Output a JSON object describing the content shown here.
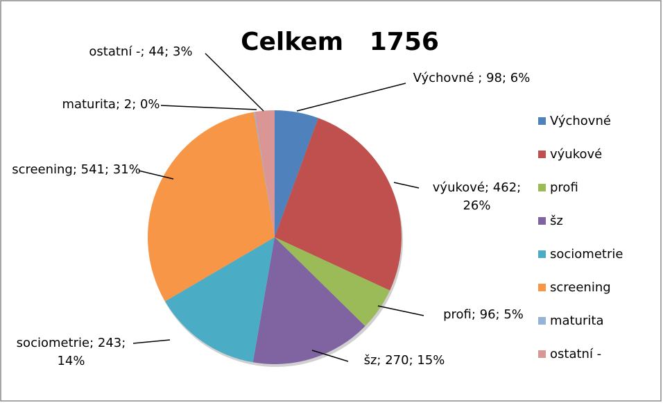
{
  "chart_data": {
    "type": "pie",
    "title": "Celkem   1756",
    "categories": [
      "Výchovné",
      "výukové",
      "profi",
      "šz",
      "sociometrie",
      "screening",
      "maturita",
      "ostatní -"
    ],
    "values": [
      98,
      462,
      96,
      270,
      243,
      541,
      2,
      44
    ],
    "value_labels": [
      "Výchovné ; 98; 6%",
      "výukové; 462; 26%",
      "profi; 96; 5%",
      "šz; 270; 15%",
      "sociometrie; 243; 14%",
      "screening; 541; 31%",
      "maturita; 2; 0%",
      "ostatní -; 44; 3%"
    ],
    "colors": [
      "#4f81bd",
      "#c0504d",
      "#9bbb59",
      "#8064a2",
      "#4bacc6",
      "#f79646",
      "#95b3d7",
      "#d99694"
    ],
    "legend": "right"
  }
}
